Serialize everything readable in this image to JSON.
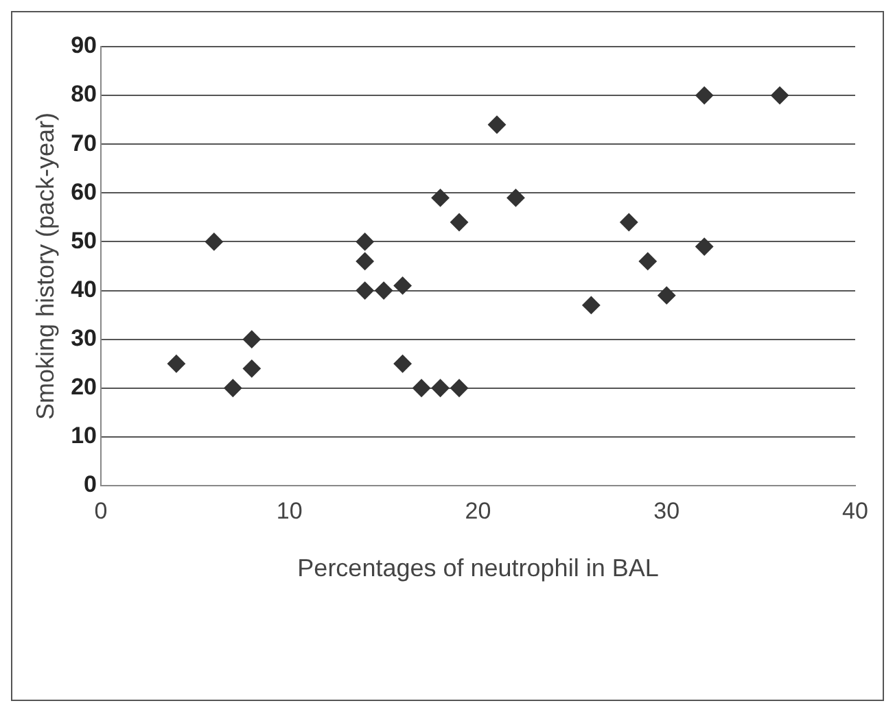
{
  "chart_data": {
    "type": "scatter",
    "xlabel": "Percentages of neutrophil in BAL",
    "ylabel": "Smoking history (pack-year)",
    "x": [
      4,
      6,
      7,
      8,
      8,
      14,
      14,
      14,
      15,
      16,
      16,
      17,
      18,
      19,
      18,
      19,
      21,
      22,
      26,
      28,
      29,
      30,
      32,
      32,
      36
    ],
    "series": [
      {
        "color": "#333333",
        "values": [
          25,
          50,
          20,
          30,
          24,
          50,
          46,
          40,
          40,
          41,
          25,
          20,
          20,
          20,
          59,
          54,
          74,
          59,
          37,
          54,
          46,
          39,
          80,
          49,
          80
        ]
      }
    ],
    "xlim": [
      0,
      40
    ],
    "xticks": [
      0,
      10,
      20,
      30,
      40
    ],
    "ylim": [
      0,
      90
    ],
    "yticks": [
      0,
      10,
      20,
      30,
      40,
      50,
      60,
      70,
      80,
      90
    ],
    "grid": "y",
    "legend": false,
    "marker": "diamond"
  }
}
